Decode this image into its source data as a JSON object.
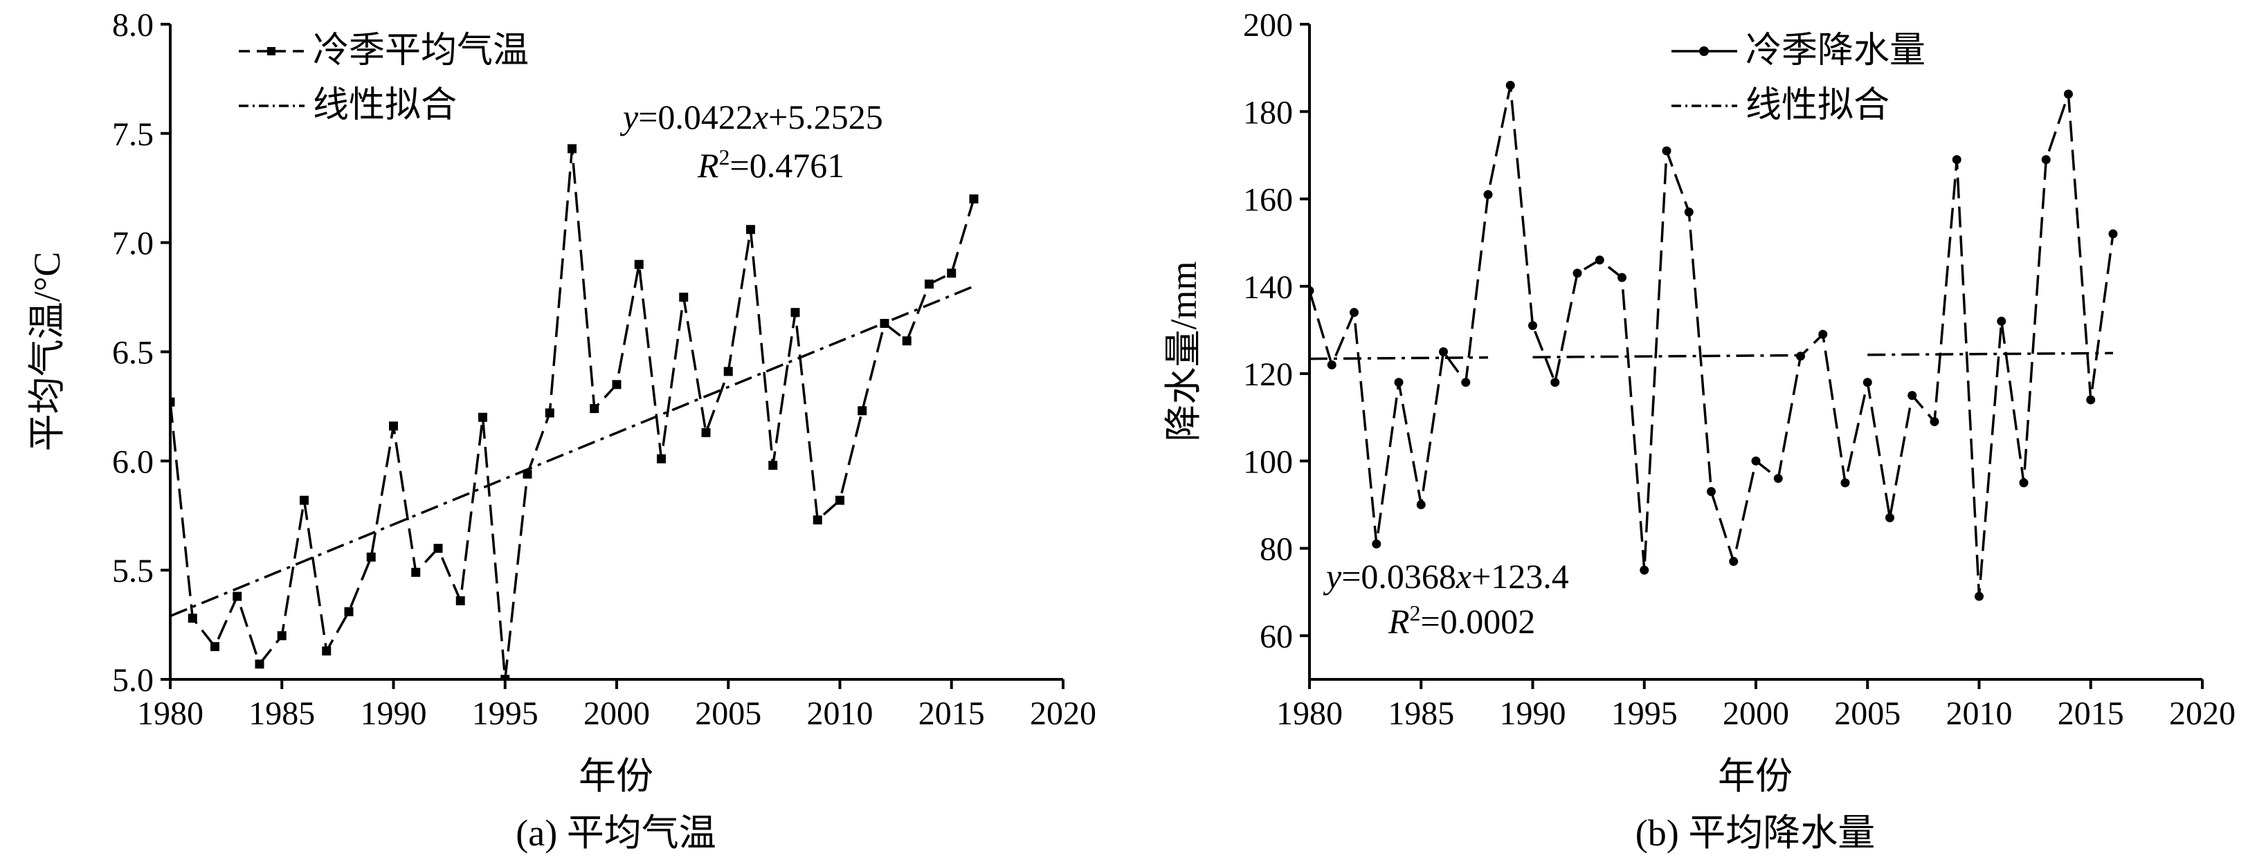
{
  "chart_data": [
    {
      "type": "line",
      "caption": "(a) 平均气温",
      "xlabel": "年份",
      "ylabel": "平均气温/°C",
      "xlim": [
        1980,
        2020
      ],
      "ylim": [
        5.0,
        8.0
      ],
      "xticks": [
        "1980",
        "1985",
        "1990",
        "1995",
        "2000",
        "2005",
        "2010",
        "2015",
        "2020"
      ],
      "yticks": [
        "5.0",
        "5.5",
        "6.0",
        "6.5",
        "7.0",
        "7.5",
        "8.0"
      ],
      "grid": false,
      "legend_position": "top-left",
      "series": [
        {
          "name": "冷季平均气温",
          "style": "dashed-markers",
          "x": [
            1980,
            1981,
            1982,
            1983,
            1984,
            1985,
            1986,
            1987,
            1988,
            1989,
            1990,
            1991,
            1992,
            1993,
            1994,
            1995,
            1996,
            1997,
            1998,
            1999,
            2000,
            2001,
            2002,
            2003,
            2004,
            2005,
            2006,
            2007,
            2008,
            2009,
            2010,
            2011,
            2012,
            2013,
            2014,
            2015,
            2016
          ],
          "values": [
            6.27,
            5.28,
            5.15,
            5.38,
            5.07,
            5.2,
            5.82,
            5.13,
            5.31,
            5.56,
            6.16,
            5.49,
            5.6,
            5.36,
            6.2,
            5.0,
            5.94,
            6.22,
            7.43,
            6.24,
            6.35,
            6.9,
            6.01,
            6.75,
            6.13,
            6.41,
            7.06,
            5.98,
            6.68,
            5.73,
            5.82,
            6.23,
            6.63,
            6.55,
            6.81,
            6.86,
            7.2
          ]
        },
        {
          "name": "线性拟合",
          "style": "dash-dot",
          "x": [
            1980,
            2016
          ],
          "values": [
            5.29,
            6.8
          ]
        }
      ],
      "annotations": [
        "y=0.0422x+5.2525",
        "R2=0.4761"
      ]
    },
    {
      "type": "line",
      "caption": "(b) 平均降水量",
      "xlabel": "年份",
      "ylabel": "降水量/mm",
      "xlim": [
        1980,
        2020
      ],
      "ylim": [
        50,
        200
      ],
      "xticks": [
        "1980",
        "1985",
        "1990",
        "1995",
        "2000",
        "2005",
        "2010",
        "2015",
        "2020"
      ],
      "yticks": [
        "60",
        "80",
        "100",
        "120",
        "140",
        "160",
        "180",
        "200"
      ],
      "grid": false,
      "legend_position": "top-right",
      "series": [
        {
          "name": "冷季降水量",
          "style": "solid-dashed-markers",
          "x": [
            1980,
            1981,
            1982,
            1983,
            1984,
            1985,
            1986,
            1987,
            1988,
            1989,
            1990,
            1991,
            1992,
            1993,
            1994,
            1995,
            1996,
            1997,
            1998,
            1999,
            2000,
            2001,
            2002,
            2003,
            2004,
            2005,
            2006,
            2007,
            2008,
            2009,
            2010,
            2011,
            2012,
            2013,
            2014,
            2015,
            2016
          ],
          "values": [
            139,
            122,
            134,
            81,
            118,
            90,
            125,
            118,
            161,
            186,
            131,
            118,
            143,
            146,
            142,
            75,
            171,
            157,
            93,
            77,
            100,
            96,
            124,
            129,
            95,
            118,
            87,
            115,
            109,
            169,
            69,
            132,
            95,
            169,
            184,
            114,
            152
          ]
        },
        {
          "name": "线性拟合",
          "style": "dash-dot",
          "x": [
            1980,
            2016
          ],
          "values": [
            123.4,
            124.7
          ]
        }
      ],
      "annotations": [
        "y=0.0368x+123.4",
        "R2=0.0002"
      ]
    }
  ]
}
